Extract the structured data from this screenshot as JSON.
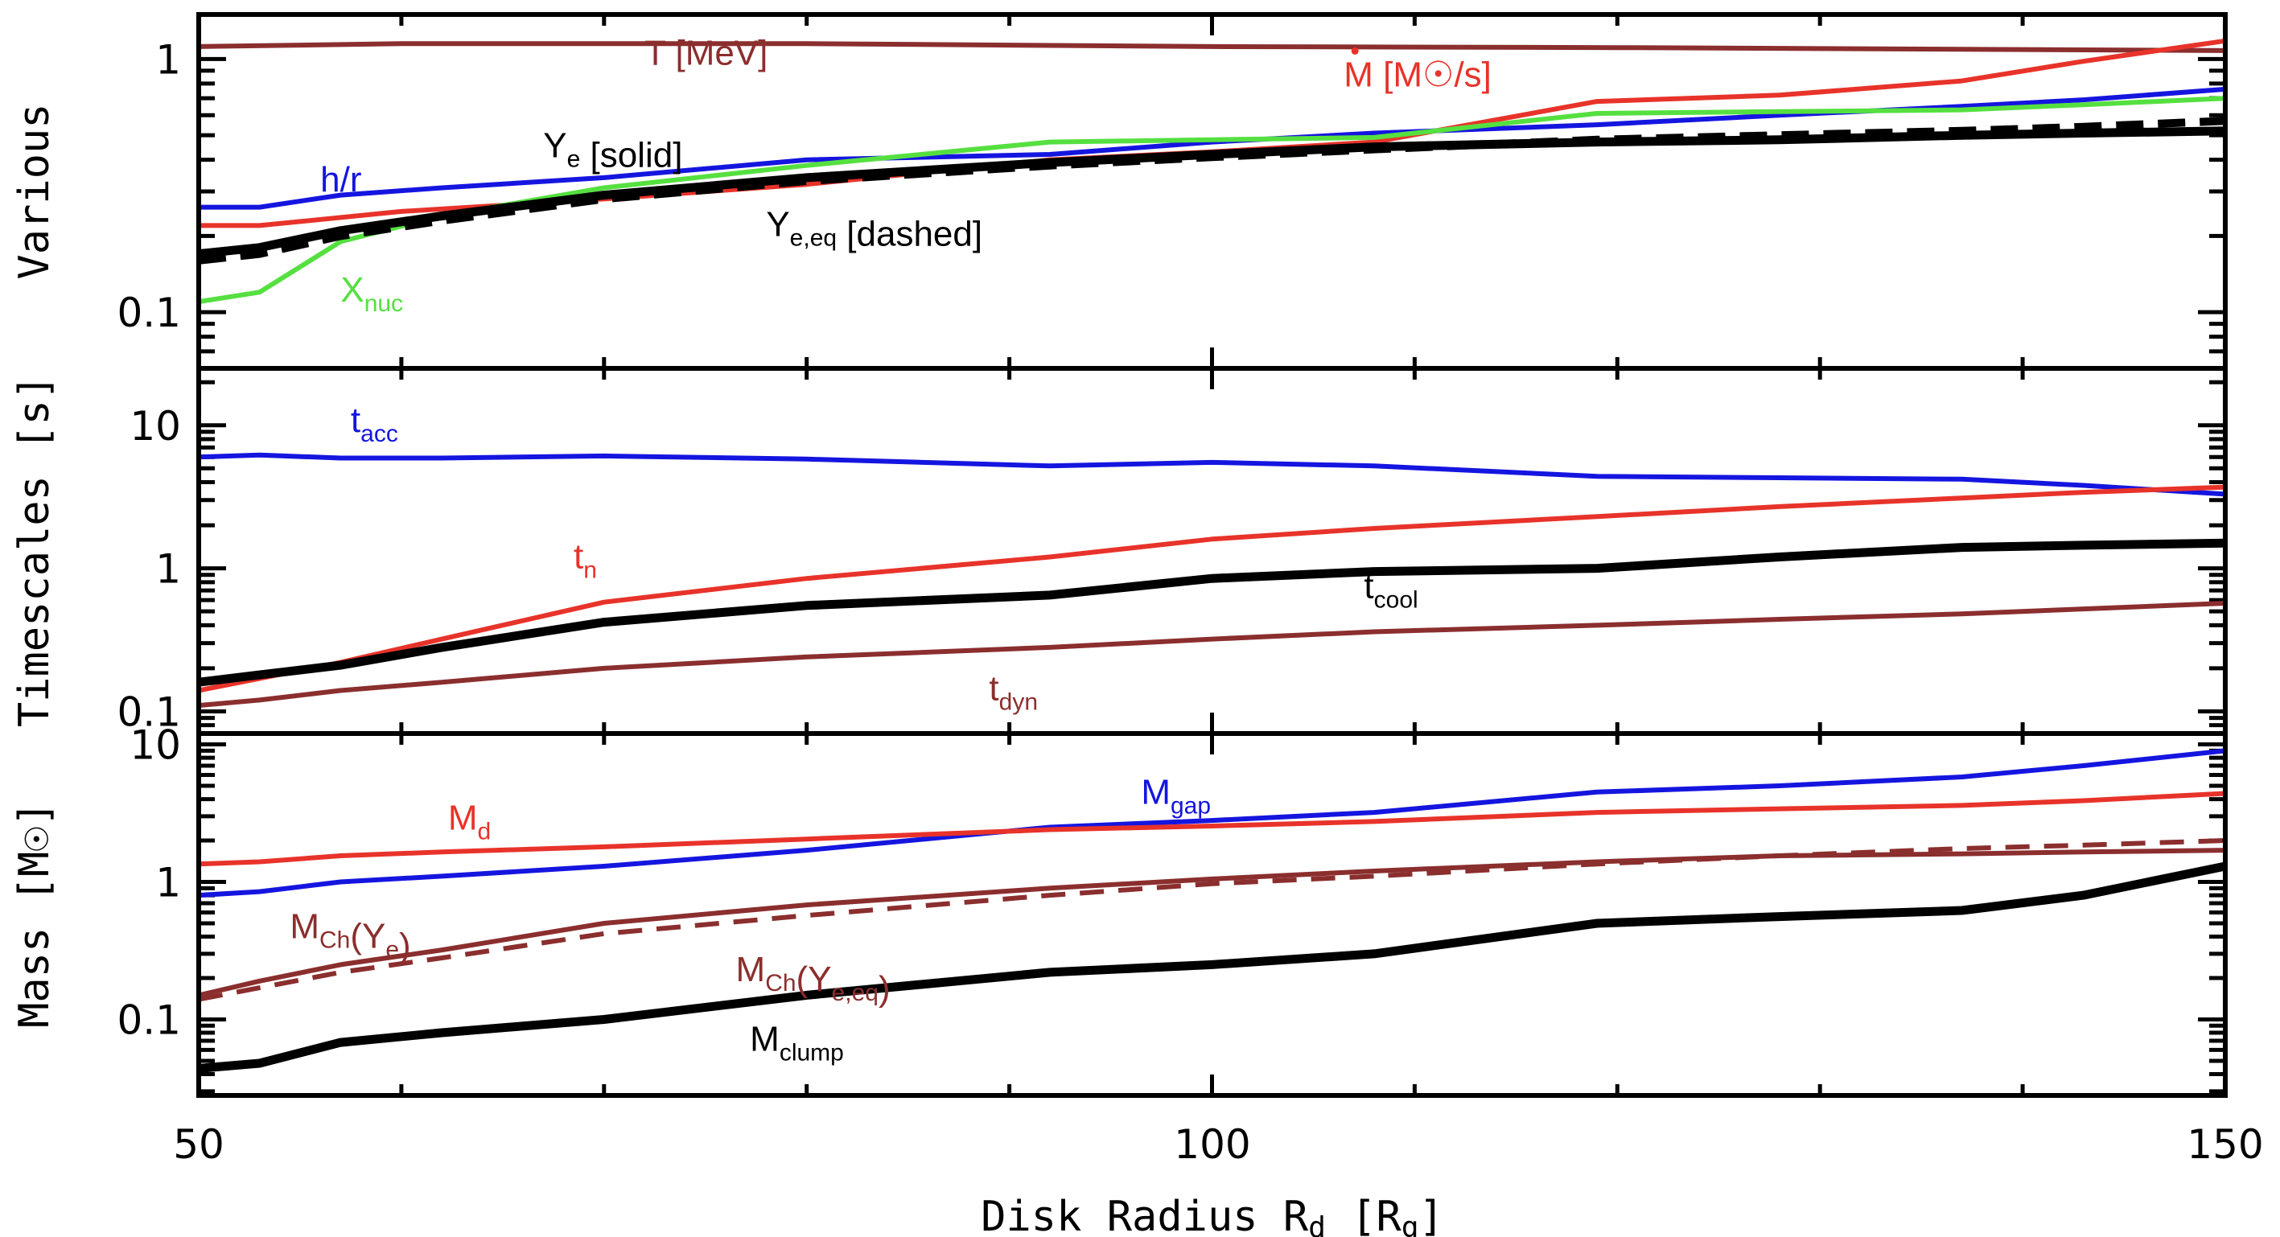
{
  "chart_data": {
    "type": "line",
    "title": "",
    "xlabel": "Disk Radius R_d [R_g]",
    "xlabel_parts": {
      "main": "Disk Radius R",
      "sub": "d",
      "unit": "[R",
      "unit_sub": "g",
      "unit_close": "]"
    },
    "xlim": [
      50,
      150
    ],
    "x_ticks": [
      50,
      100,
      150
    ],
    "x_tick_labels": [
      "50",
      "100",
      "150"
    ],
    "panels": [
      {
        "id": "various",
        "ylabel": "Various",
        "yscale": "log",
        "ylim": [
          0.06,
          1.5
        ],
        "y_ticks": [
          0.1,
          1
        ],
        "y_tick_labels": [
          "0.1",
          "1"
        ],
        "series": [
          {
            "name": "T [MeV]",
            "color": "#8b2e2e",
            "style": "solid",
            "x": [
              50,
              60,
              80,
              100,
              120,
              140,
              150
            ],
            "y": [
              1.12,
              1.15,
              1.15,
              1.12,
              1.11,
              1.09,
              1.08
            ],
            "label": {
              "text": "T [MeV]",
              "sub": "",
              "rest": ""
            }
          },
          {
            "name": "Mdot [M_sun/s]",
            "color": "#e8332a",
            "style": "solid",
            "x": [
              50,
              53,
              60,
              70,
              80,
              92,
              100,
              108,
              119,
              128,
              137,
              143,
              150
            ],
            "y": [
              0.22,
              0.22,
              0.25,
              0.28,
              0.32,
              0.4,
              0.43,
              0.47,
              0.68,
              0.72,
              0.82,
              0.98,
              1.18
            ],
            "label": {
              "text": "M",
              "sub": "",
              "rest": " [M☉/s]"
            }
          },
          {
            "name": "h/r",
            "color": "#1515e0",
            "style": "solid",
            "x": [
              50,
              53,
              57,
              62,
              70,
              80,
              92,
              100,
              108,
              119,
              128,
              137,
              143,
              150
            ],
            "y": [
              0.26,
              0.26,
              0.29,
              0.31,
              0.34,
              0.4,
              0.42,
              0.47,
              0.51,
              0.55,
              0.6,
              0.65,
              0.69,
              0.76
            ]
          },
          {
            "name": "X_nuc",
            "color": "#55e040",
            "style": "solid",
            "x": [
              50,
              53,
              57,
              62,
              70,
              80,
              92,
              100,
              108,
              119,
              128,
              137,
              143,
              150
            ],
            "y": [
              0.11,
              0.12,
              0.19,
              0.24,
              0.31,
              0.38,
              0.47,
              0.48,
              0.49,
              0.61,
              0.62,
              0.63,
              0.66,
              0.7
            ]
          },
          {
            "name": "Y_e [solid]",
            "color": "#000000",
            "style": "solid",
            "x": [
              50,
              53,
              57,
              62,
              70,
              80,
              92,
              100,
              108,
              119,
              128,
              137,
              143,
              150
            ],
            "y": [
              0.17,
              0.18,
              0.21,
              0.24,
              0.29,
              0.34,
              0.39,
              0.42,
              0.45,
              0.47,
              0.48,
              0.5,
              0.51,
              0.52
            ]
          },
          {
            "name": "Y_e,eq [dashed]",
            "color": "#000000",
            "style": "dashed",
            "x": [
              50,
              53,
              57,
              62,
              70,
              80,
              92,
              100,
              108,
              119,
              128,
              137,
              143,
              150
            ],
            "y": [
              0.16,
              0.17,
              0.2,
              0.23,
              0.28,
              0.33,
              0.38,
              0.41,
              0.44,
              0.48,
              0.5,
              0.52,
              0.54,
              0.57
            ]
          }
        ],
        "labels": [
          {
            "series": "T [MeV]",
            "main": "T [MeV]",
            "sub": "",
            "after": "",
            "color": "#8b2e2e",
            "at": [
              72,
              0.95
            ]
          },
          {
            "series": "Mdot [M_sun/s]",
            "main": "M",
            "sub": "",
            "after": " [M☉/s]",
            "color": "#e8332a",
            "at": [
              106.5,
              0.78
            ],
            "dot": true
          },
          {
            "series": "h/r",
            "main": "h/r",
            "sub": "",
            "after": "",
            "color": "#1515e0",
            "at": [
              56,
              0.3
            ]
          },
          {
            "series": "Y_e [solid]",
            "main": "Y",
            "sub": "e",
            "after": " [solid]",
            "color": "#000000",
            "at": [
              67,
              0.41
            ]
          },
          {
            "series": "Y_e,eq [dashed]",
            "main": "Y",
            "sub": "e,eq",
            "after": " [dashed]",
            "color": "#000000",
            "at": [
              78,
              0.2
            ]
          },
          {
            "series": "X_nuc",
            "main": "X",
            "sub": "nuc",
            "after": "",
            "color": "#55e040",
            "at": [
              57,
              0.11
            ]
          }
        ]
      },
      {
        "id": "timescales",
        "ylabel": "Timescales [s]",
        "yscale": "log",
        "ylim": [
          0.07,
          25
        ],
        "y_ticks": [
          0.1,
          1,
          10
        ],
        "y_tick_labels": [
          "0.1",
          "1",
          "10"
        ],
        "series": [
          {
            "name": "t_acc",
            "color": "#1515e0",
            "style": "solid",
            "x": [
              50,
              53,
              57,
              62,
              70,
              80,
              92,
              100,
              108,
              119,
              128,
              137,
              143,
              150
            ],
            "y": [
              6.0,
              6.2,
              5.9,
              5.9,
              6.1,
              5.8,
              5.2,
              5.5,
              5.2,
              4.4,
              4.3,
              4.2,
              3.8,
              3.3
            ]
          },
          {
            "name": "t_n",
            "color": "#e8332a",
            "style": "solid",
            "x": [
              50,
              53,
              57,
              62,
              70,
              80,
              92,
              100,
              108,
              119,
              128,
              137,
              143,
              150
            ],
            "y": [
              0.14,
              0.17,
              0.22,
              0.32,
              0.58,
              0.85,
              1.2,
              1.6,
              1.9,
              2.3,
              2.7,
              3.1,
              3.4,
              3.7
            ]
          },
          {
            "name": "t_cool",
            "color": "#000000",
            "style": "solid",
            "x": [
              50,
              53,
              57,
              62,
              70,
              80,
              92,
              100,
              108,
              119,
              128,
              137,
              143,
              150
            ],
            "y": [
              0.16,
              0.18,
              0.21,
              0.28,
              0.42,
              0.55,
              0.65,
              0.85,
              0.95,
              1.0,
              1.2,
              1.4,
              1.45,
              1.5
            ]
          },
          {
            "name": "t_dyn",
            "color": "#8b2e2e",
            "style": "solid",
            "x": [
              50,
              53,
              57,
              62,
              70,
              80,
              92,
              100,
              108,
              119,
              128,
              137,
              143,
              150
            ],
            "y": [
              0.11,
              0.12,
              0.14,
              0.16,
              0.2,
              0.24,
              0.28,
              0.32,
              0.36,
              0.4,
              0.44,
              0.48,
              0.52,
              0.57
            ]
          }
        ],
        "labels": [
          {
            "series": "t_acc",
            "main": "t",
            "sub": "acc",
            "after": "",
            "color": "#1515e0",
            "at": [
              57.5,
              9.0
            ]
          },
          {
            "series": "t_n",
            "main": "t",
            "sub": "n",
            "after": "",
            "color": "#e8332a",
            "at": [
              68.5,
              1.0
            ]
          },
          {
            "series": "t_cool",
            "main": "t",
            "sub": "cool",
            "after": "",
            "color": "#000000",
            "at": [
              107.5,
              0.62
            ]
          },
          {
            "series": "t_dyn",
            "main": "t",
            "sub": "dyn",
            "after": "",
            "color": "#8b2e2e",
            "at": [
              89,
              0.12
            ]
          }
        ]
      },
      {
        "id": "mass",
        "ylabel": "Mass [M☉]",
        "yscale": "log",
        "ylim": [
          0.028,
          12
        ],
        "y_ticks": [
          0.1,
          1,
          10
        ],
        "y_tick_labels": [
          "0.1",
          "1",
          "10"
        ],
        "series": [
          {
            "name": "M_gap",
            "color": "#1515e0",
            "style": "solid",
            "x": [
              50,
              53,
              57,
              62,
              70,
              80,
              92,
              100,
              108,
              119,
              128,
              137,
              143,
              150
            ],
            "y": [
              0.8,
              0.85,
              1.0,
              1.1,
              1.3,
              1.7,
              2.5,
              2.8,
              3.2,
              4.5,
              5.0,
              5.8,
              7.0,
              9.0
            ]
          },
          {
            "name": "M_d",
            "color": "#e8332a",
            "style": "solid",
            "x": [
              50,
              53,
              57,
              62,
              70,
              80,
              92,
              100,
              108,
              119,
              128,
              137,
              143,
              150
            ],
            "y": [
              1.35,
              1.4,
              1.55,
              1.65,
              1.8,
              2.05,
              2.4,
              2.55,
              2.75,
              3.2,
              3.4,
              3.6,
              3.9,
              4.4
            ]
          },
          {
            "name": "M_Ch(Y_e)",
            "color": "#8b2e2e",
            "style": "solid",
            "x": [
              50,
              53,
              57,
              62,
              70,
              80,
              92,
              100,
              108,
              119,
              128,
              137,
              143,
              150
            ],
            "y": [
              0.15,
              0.19,
              0.25,
              0.32,
              0.5,
              0.68,
              0.9,
              1.05,
              1.2,
              1.4,
              1.55,
              1.6,
              1.65,
              1.7
            ]
          },
          {
            "name": "M_Ch(Y_e,eq)",
            "color": "#8b2e2e",
            "style": "dashed",
            "x": [
              50,
              53,
              57,
              62,
              70,
              80,
              92,
              100,
              108,
              119,
              128,
              137,
              143,
              150
            ],
            "y": [
              0.14,
              0.17,
              0.22,
              0.28,
              0.42,
              0.57,
              0.8,
              0.97,
              1.1,
              1.35,
              1.55,
              1.75,
              1.85,
              2.0
            ]
          },
          {
            "name": "M_clump",
            "color": "#000000",
            "style": "solid",
            "x": [
              50,
              53,
              57,
              62,
              70,
              80,
              92,
              100,
              108,
              119,
              128,
              137,
              143,
              150
            ],
            "y": [
              0.044,
              0.048,
              0.068,
              0.08,
              0.1,
              0.15,
              0.22,
              0.25,
              0.3,
              0.5,
              0.56,
              0.62,
              0.8,
              1.3
            ]
          }
        ],
        "labels": [
          {
            "series": "M_gap",
            "main": "M",
            "sub": "gap",
            "after": "",
            "color": "#1515e0",
            "at": [
              96.5,
              3.7
            ]
          },
          {
            "series": "M_d",
            "main": "M",
            "sub": "d",
            "after": "",
            "color": "#e8332a",
            "at": [
              62.3,
              2.4
            ]
          },
          {
            "series": "M_Ch(Y_e)",
            "main": "M",
            "sub": "Ch",
            "after": "(Y",
            "sub2": "e",
            "after2": ")",
            "color": "#8b2e2e",
            "at": [
              54.5,
              0.39
            ]
          },
          {
            "series": "M_Ch(Y_e,eq)",
            "main": "M",
            "sub": "Ch",
            "after": "(Y",
            "sub2": "e,eq",
            "after2": ")",
            "color": "#8b2e2e",
            "at": [
              76.5,
              0.19
            ]
          },
          {
            "series": "M_clump",
            "main": "M",
            "sub": "clump",
            "after": "",
            "color": "#000000",
            "at": [
              77.2,
              0.059
            ]
          }
        ]
      }
    ]
  }
}
